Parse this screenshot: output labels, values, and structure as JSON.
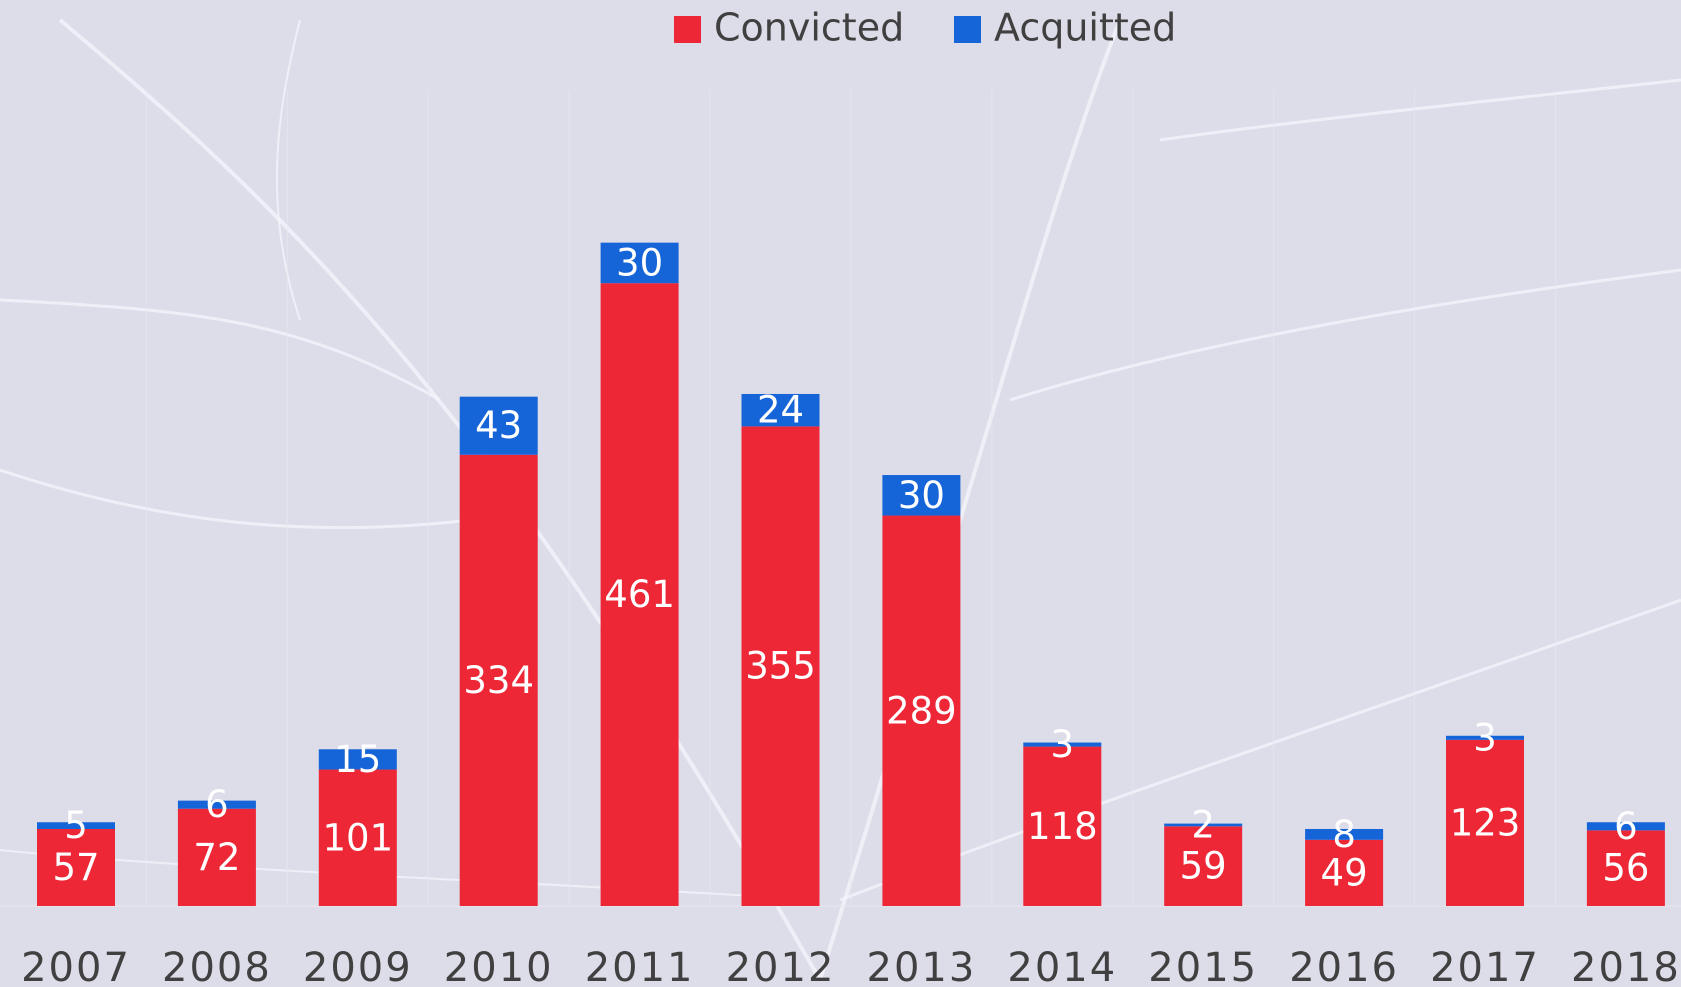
{
  "chart_data": {
    "type": "stacked_bar",
    "categories": [
      "2007",
      "2008",
      "2009",
      "2010",
      "2011",
      "2012",
      "2013",
      "2014",
      "2015",
      "2016",
      "2017",
      "2018"
    ],
    "series": [
      {
        "name": "Convicted",
        "color": "#ee2737",
        "values": [
          57,
          72,
          101,
          334,
          461,
          355,
          289,
          118,
          59,
          49,
          123,
          56
        ]
      },
      {
        "name": "Acquitted",
        "color": "#1565d8",
        "values": [
          5,
          6,
          15,
          43,
          30,
          24,
          30,
          3,
          2,
          8,
          3,
          6
        ]
      }
    ]
  }
}
